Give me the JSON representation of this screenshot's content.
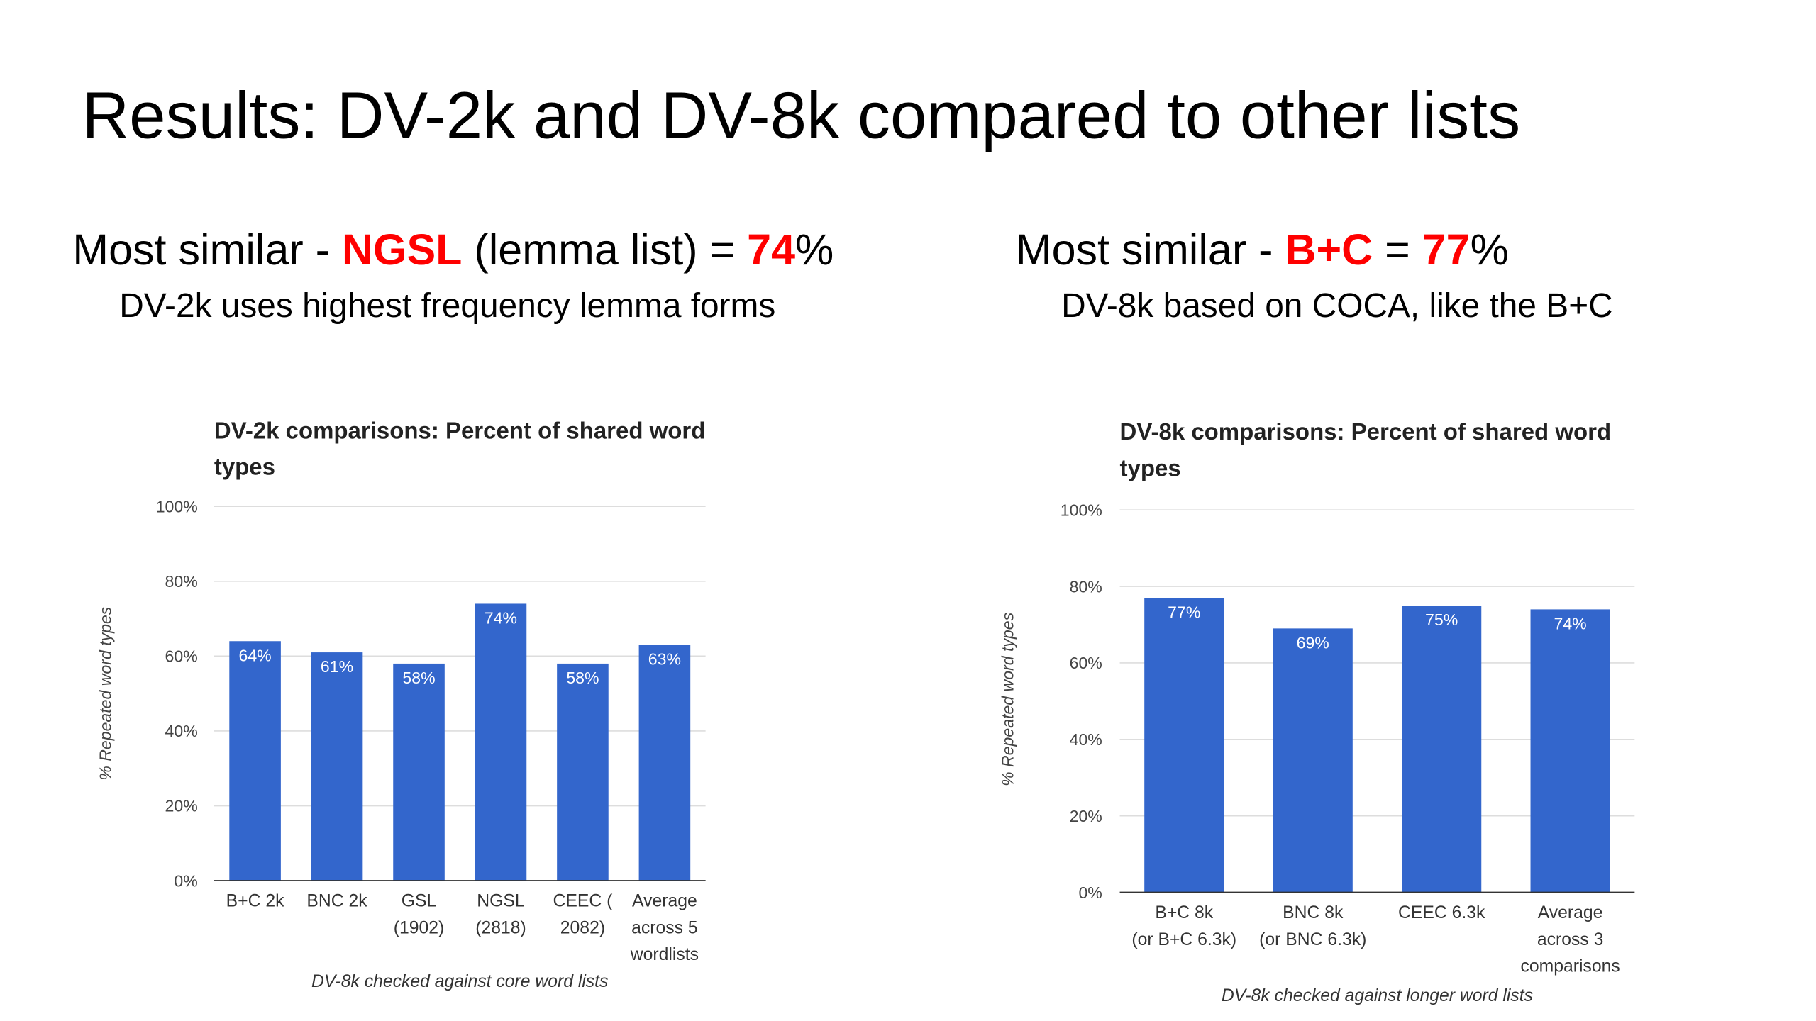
{
  "slide": {
    "title": "Results: DV-2k and DV-8k compared to other lists",
    "left_heading": [
      {
        "text": "Most similar - "
      },
      {
        "text": "NGSL",
        "highlight": true
      },
      {
        "text": " (lemma list) = "
      },
      {
        "text": "74",
        "highlight": true
      },
      {
        "text": "%"
      }
    ],
    "left_subheading": "DV-2k uses highest frequency lemma forms",
    "right_heading": [
      {
        "text": "Most similar - "
      },
      {
        "text": "B+C",
        "highlight": true
      },
      {
        "text": " = "
      },
      {
        "text": "77",
        "highlight": true
      },
      {
        "text": "%"
      }
    ],
    "right_subheading": "DV-8k based on COCA, like the B+C",
    "highlight_color": "#ff0000"
  },
  "chart_data": [
    {
      "type": "bar",
      "title": [
        "DV-2k comparisons: Percent of shared word",
        "types"
      ],
      "ylabel": "% Repeated word types",
      "xlabel": "DV-8k checked against core word lists",
      "categories": [
        [
          "B+C 2k"
        ],
        [
          "BNC 2k"
        ],
        [
          "GSL",
          "(1902)"
        ],
        [
          "NGSL",
          "(2818)"
        ],
        [
          "CEEC (",
          "2082)"
        ],
        [
          "Average",
          "across 5",
          "wordlists"
        ]
      ],
      "values": [
        64,
        61,
        58,
        74,
        58,
        63
      ],
      "value_labels": [
        "64%",
        "61%",
        "58%",
        "74%",
        "58%",
        "63%"
      ],
      "color": "#3366cc",
      "ylim": [
        0,
        100
      ],
      "yticks": [
        {
          "value": 0,
          "label": "0%"
        },
        {
          "value": 20,
          "label": "20%"
        },
        {
          "value": 40,
          "label": "40%"
        },
        {
          "value": 60,
          "label": "60%"
        },
        {
          "value": 80,
          "label": "80%"
        },
        {
          "value": 100,
          "label": "100%"
        }
      ],
      "grid": true
    },
    {
      "type": "bar",
      "title": [
        "DV-8k comparisons: Percent of shared word",
        "types"
      ],
      "ylabel": "% Repeated word types",
      "xlabel": "DV-8k checked against longer word lists",
      "categories": [
        [
          "B+C 8k",
          "(or B+C 6.3k)"
        ],
        [
          "BNC 8k",
          "(or BNC 6.3k)"
        ],
        [
          "CEEC 6.3k"
        ],
        [
          "Average",
          "across 3",
          "comparisons"
        ]
      ],
      "values": [
        77,
        69,
        75,
        74
      ],
      "value_labels": [
        "77%",
        "69%",
        "75%",
        "74%"
      ],
      "color": "#3366cc",
      "ylim": [
        0,
        100
      ],
      "yticks": [
        {
          "value": 0,
          "label": "0%"
        },
        {
          "value": 20,
          "label": "20%"
        },
        {
          "value": 40,
          "label": "40%"
        },
        {
          "value": 60,
          "label": "60%"
        },
        {
          "value": 80,
          "label": "80%"
        },
        {
          "value": 100,
          "label": "100%"
        }
      ],
      "grid": true
    }
  ]
}
